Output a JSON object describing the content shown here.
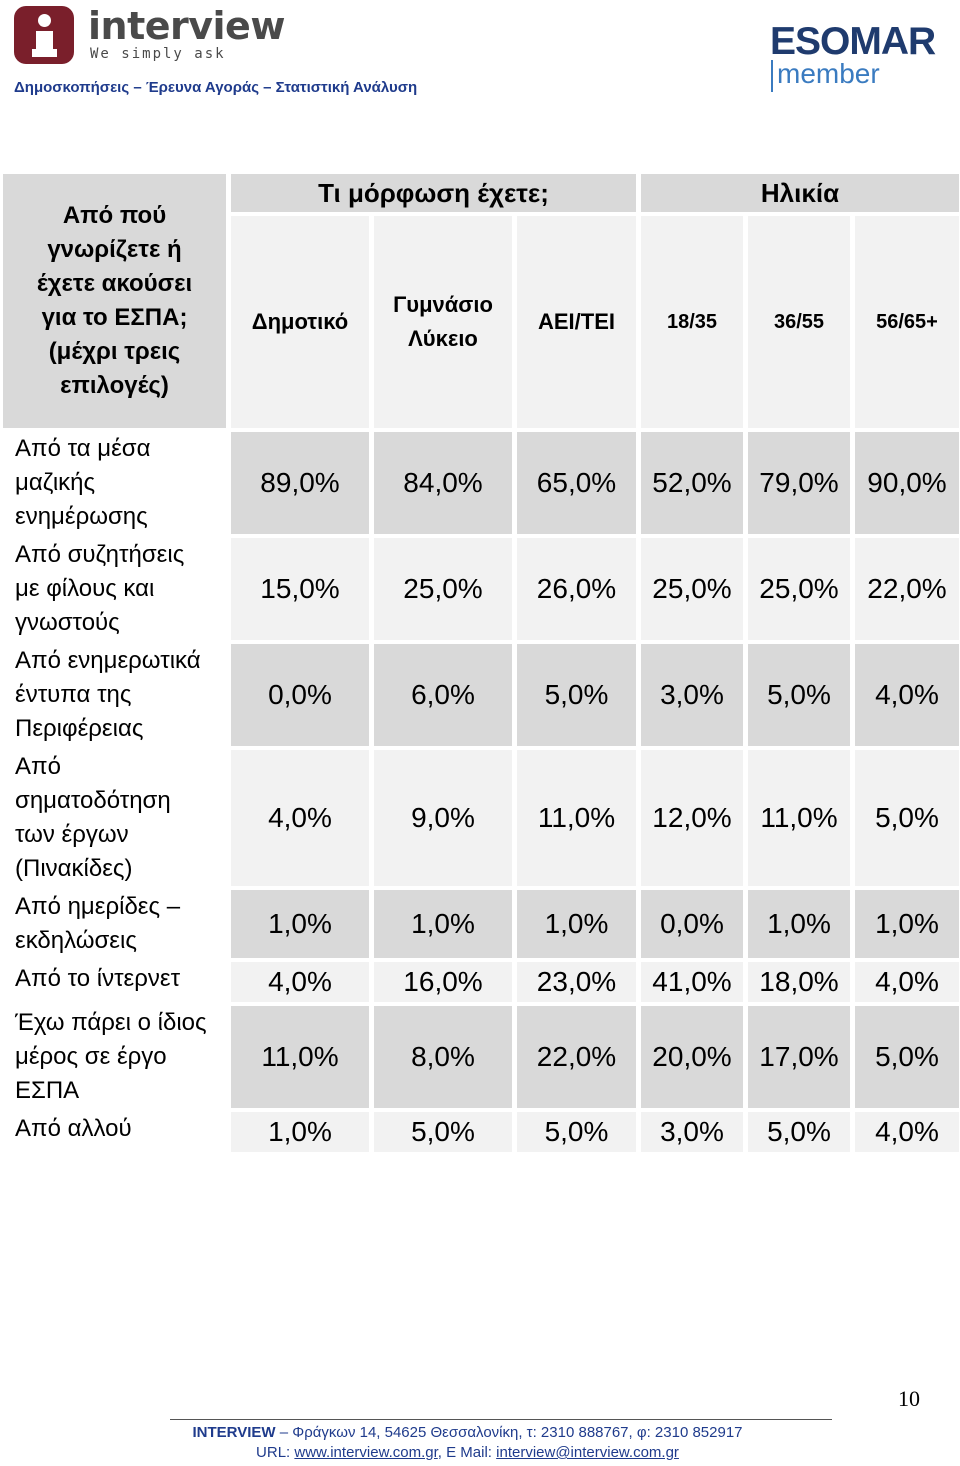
{
  "header": {
    "logo_word": "interview",
    "logo_tagline": "We simply ask",
    "subtitle": "Δημοσκοπήσεις – Έρευνα Αγοράς – Στατιστική Ανάλυση",
    "esomar": "ESOMAR",
    "esomar_member": "member"
  },
  "table": {
    "corner_label": [
      "Από πού",
      "γνωρίζετε ή",
      "έχετε ακούσει",
      "για το ΕΣΠΑ;",
      "(μέχρι τρεις",
      "επιλογές)"
    ],
    "group_education": "Τι μόρφωση έχετε;",
    "group_age": "Ηλικία",
    "columns": [
      {
        "lines": [
          "Δημοτικό"
        ]
      },
      {
        "lines": [
          "Γυμνάσιο",
          "Λύκειο"
        ]
      },
      {
        "lines": [
          "ΑΕΙ/ΤΕΙ"
        ]
      },
      {
        "lines": [
          "18/35"
        ]
      },
      {
        "lines": [
          "36/55"
        ]
      },
      {
        "lines": [
          "56/65+"
        ]
      }
    ],
    "rows": [
      {
        "label": [
          "Από τα μέσα",
          "μαζικής",
          "ενημέρωσης"
        ],
        "values": [
          "89,0%",
          "84,0%",
          "65,0%",
          "52,0%",
          "79,0%",
          "90,0%"
        ]
      },
      {
        "label": [
          "Από συζητήσεις",
          "με φίλους και",
          "γνωστούς"
        ],
        "values": [
          "15,0%",
          "25,0%",
          "26,0%",
          "25,0%",
          "25,0%",
          "22,0%"
        ]
      },
      {
        "label": [
          "Από ενημερωτικά",
          "έντυπα της",
          "Περιφέρειας"
        ],
        "values": [
          "0,0%",
          "6,0%",
          "5,0%",
          "3,0%",
          "5,0%",
          "4,0%"
        ]
      },
      {
        "label": [
          "Από",
          "σηματοδότηση",
          "των έργων",
          "(Πινακίδες)"
        ],
        "values": [
          "4,0%",
          "9,0%",
          "11,0%",
          "12,0%",
          "11,0%",
          "5,0%"
        ]
      },
      {
        "label": [
          "Από ημερίδες –",
          "εκδηλώσεις"
        ],
        "values": [
          "1,0%",
          "1,0%",
          "1,0%",
          "0,0%",
          "1,0%",
          "1,0%"
        ]
      },
      {
        "label": [
          "Από το ίντερνετ"
        ],
        "values": [
          "4,0%",
          "16,0%",
          "23,0%",
          "41,0%",
          "18,0%",
          "4,0%"
        ]
      },
      {
        "label": [
          "Έχω πάρει ο ίδιος",
          "μέρος σε έργο",
          "ΕΣΠΑ"
        ],
        "values": [
          "11,0%",
          "8,0%",
          "22,0%",
          "20,0%",
          "17,0%",
          "5,0%"
        ]
      },
      {
        "label": [
          "Από αλλού"
        ],
        "values": [
          "1,0%",
          "5,0%",
          "5,0%",
          "3,0%",
          "5,0%",
          "4,0%"
        ]
      }
    ]
  },
  "footer": {
    "page_number": "10",
    "company": "INTERVIEW",
    "address": " – Φράγκων 14, 54625 Θεσσαλονίκη, τ: 2310 888767, φ: 2310 852917",
    "url_label": "URL: ",
    "url": "www.interview.com.gr",
    "mail_label": ", E Mail: ",
    "mail": "interview@interview.com.gr"
  }
}
